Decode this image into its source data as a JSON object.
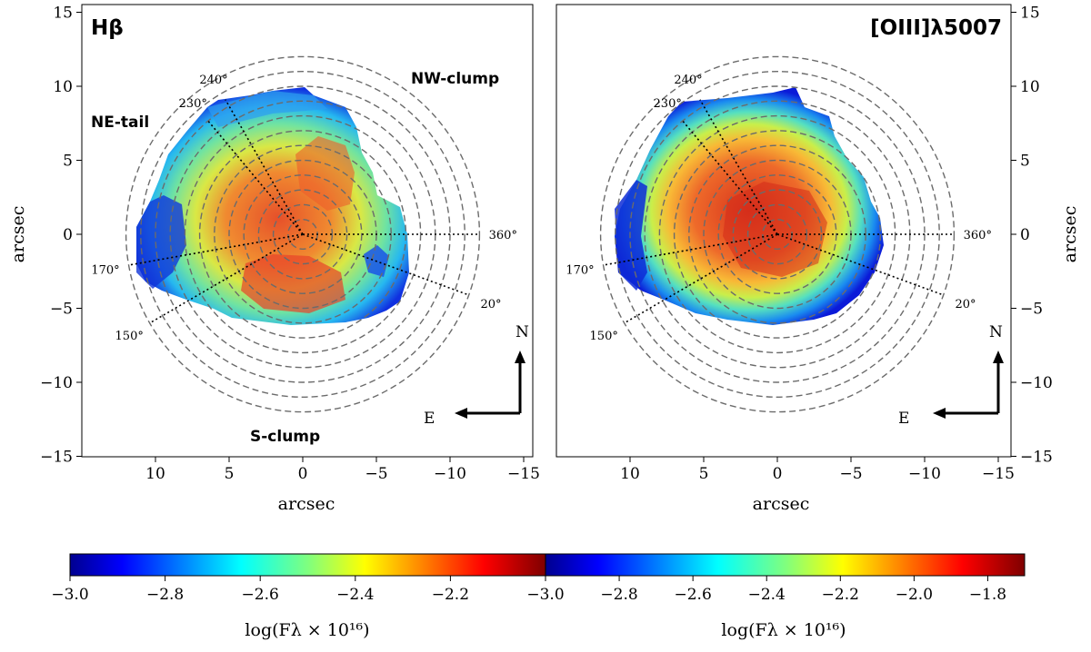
{
  "chart_data": [
    {
      "type": "heatmap",
      "title": "Hβ",
      "xlabel": "arcsec",
      "ylabel": "arcsec",
      "xlim": [
        15,
        -15
      ],
      "ylim": [
        -15,
        15
      ],
      "xticks": [
        10,
        5,
        0,
        -5,
        -10,
        -15
      ],
      "yticks": [
        -15,
        -10,
        -5,
        0,
        5,
        10,
        15
      ],
      "xtick_labels": [
        "10",
        "5",
        "0",
        "−5",
        "−10",
        "−15"
      ],
      "ytick_labels": [
        "−15",
        "−10",
        "−5",
        "0",
        "5",
        "10",
        "15"
      ],
      "ring_radii": [
        1,
        2,
        3,
        4,
        5,
        6,
        7,
        8,
        9,
        10,
        11,
        12
      ],
      "angle_lines": [
        {
          "label": "240°",
          "angle_deg": 240,
          "length": 10.5
        },
        {
          "label": "230°",
          "angle_deg": 230,
          "length": 10.0
        },
        {
          "label": "170°",
          "angle_deg": 170,
          "length": 12.0
        },
        {
          "label": "150°",
          "angle_deg": 150,
          "length": 12.0
        },
        {
          "label": "20°",
          "angle_deg": 20,
          "length": 12.0
        },
        {
          "label": "360°",
          "angle_deg": 360,
          "length": 12.0
        }
      ],
      "annotations": [
        "NE-tail",
        "NW-clump",
        "S-clump"
      ],
      "compass": {
        "north": "N",
        "east": "E"
      },
      "colorbar": {
        "label": "log(F_λ × 10^16)",
        "range": [
          -3.0,
          -2.0
        ],
        "ticks": [
          -3.0,
          -2.8,
          -2.6,
          -2.4,
          -2.2
        ],
        "tick_labels": [
          "−3.0",
          "−2.8",
          "−2.6",
          "−2.4",
          "−2.2"
        ]
      }
    },
    {
      "type": "heatmap",
      "title": "[OIII]λ5007",
      "xlabel": "arcsec",
      "ylabel": "arcsec",
      "xlim": [
        15,
        -15
      ],
      "ylim": [
        -15,
        15
      ],
      "xticks": [
        10,
        5,
        0,
        -5,
        -10,
        -15
      ],
      "yticks": [
        -15,
        -10,
        -5,
        0,
        5,
        10,
        15
      ],
      "xtick_labels": [
        "10",
        "5",
        "0",
        "−5",
        "−10",
        "−15"
      ],
      "ytick_labels": [
        "−15",
        "−10",
        "−5",
        "0",
        "5",
        "10",
        "15"
      ],
      "ring_radii": [
        1,
        2,
        3,
        4,
        5,
        6,
        7,
        8,
        9,
        10,
        11,
        12
      ],
      "angle_lines": [
        {
          "label": "240°",
          "angle_deg": 240,
          "length": 10.5
        },
        {
          "label": "230°",
          "angle_deg": 230,
          "length": 10.0
        },
        {
          "label": "170°",
          "angle_deg": 170,
          "length": 12.0
        },
        {
          "label": "150°",
          "angle_deg": 150,
          "length": 12.0
        },
        {
          "label": "20°",
          "angle_deg": 20,
          "length": 12.0
        },
        {
          "label": "360°",
          "angle_deg": 360,
          "length": 12.0
        }
      ],
      "annotations": [],
      "compass": {
        "north": "N",
        "east": "E"
      },
      "colorbar": {
        "label": "log(F_λ × 10^16)",
        "range": [
          -3.0,
          -1.7
        ],
        "ticks": [
          -3.0,
          -2.8,
          -2.6,
          -2.4,
          -2.2,
          -2.0,
          -1.8
        ],
        "tick_labels": [
          "−3.0",
          "−2.8",
          "−2.6",
          "−2.4",
          "−2.2",
          "−2.0",
          "−1.8"
        ]
      }
    }
  ],
  "colorbar_label_text": "log(Fλ × 10¹⁶)"
}
